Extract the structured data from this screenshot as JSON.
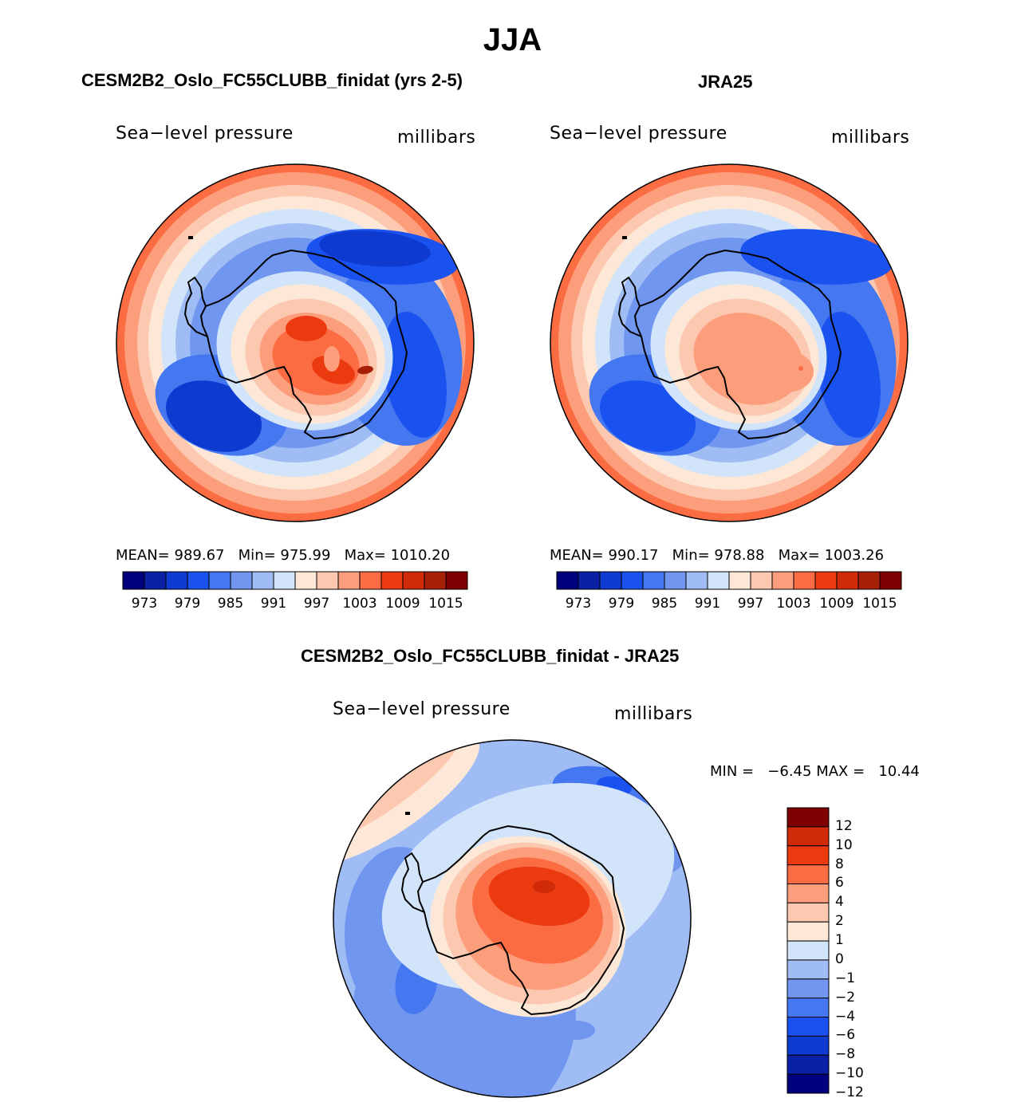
{
  "figure": {
    "title": "JJA"
  },
  "colors": {
    "abs_scale": [
      "#00007f",
      "#0a21a6",
      "#0f3acf",
      "#1a52f0",
      "#4477f0",
      "#7096f0",
      "#a0bcf4",
      "#d2e4fa",
      "#fde8d8",
      "#fcc8b0",
      "#fc9e7c",
      "#fb6c42",
      "#ec3a10",
      "#d02a08",
      "#a61f06",
      "#7f0000"
    ],
    "diff_scale": [
      "#00007f",
      "#0a21a6",
      "#0f3acf",
      "#1a52f0",
      "#4477f0",
      "#7096f0",
      "#a0bcf4",
      "#d2e4fa",
      "#fde8d8",
      "#fcc8b0",
      "#fc9e7c",
      "#fb6c42",
      "#ec3a10",
      "#d02a08",
      "#7f0000"
    ],
    "coast": "#000000"
  },
  "panels": [
    {
      "title": "CESM2B2_Oslo_FC55CLUBB_finidat (yrs 2-5)",
      "variable": "Sea−level pressure",
      "units": "millibars",
      "stats": {
        "mean_label": "MEAN=",
        "mean": "989.67",
        "min_label": "Min=",
        "min": "975.99",
        "max_label": "Max=",
        "max": "1010.20"
      }
    },
    {
      "title": "JRA25",
      "variable": "Sea−level pressure",
      "units": "millibars",
      "stats": {
        "mean_label": "MEAN=",
        "mean": "990.17",
        "min_label": "Min=",
        "min": "978.88",
        "max_label": "Max=",
        "max": "1003.26"
      }
    },
    {
      "title": "CESM2B2_Oslo_FC55CLUBB_finidat - JRA25",
      "variable": "Sea−level pressure",
      "units": "millibars",
      "stats": {
        "min_label": "MIN =",
        "min": "−6.45",
        "max_label": "MAX =",
        "max": "10.44"
      }
    }
  ],
  "chart_data": [
    {
      "type": "heatmap",
      "title": "CESM2B2_Oslo_FC55CLUBB_finidat (yrs 2-5)",
      "projection": "south-polar-stereographic",
      "variable": "Sea-level pressure",
      "units": "millibars",
      "mean": 989.67,
      "min": 975.99,
      "max": 1010.2,
      "colorbar_ticks": [
        "973",
        "979",
        "985",
        "991",
        "997",
        "1003",
        "1009",
        "1015"
      ],
      "colorbar_orientation": "horizontal",
      "features": [
        {
          "name": "antarctic-high",
          "value": 1006
        },
        {
          "name": "circumpolar-trough",
          "value": 979
        },
        {
          "name": "subtropical-ring",
          "value": 1003
        }
      ]
    },
    {
      "type": "heatmap",
      "title": "JRA25",
      "projection": "south-polar-stereographic",
      "variable": "Sea-level pressure",
      "units": "millibars",
      "mean": 990.17,
      "min": 978.88,
      "max": 1003.26,
      "colorbar_ticks": [
        "973",
        "979",
        "985",
        "991",
        "997",
        "1003",
        "1009",
        "1015"
      ],
      "colorbar_orientation": "horizontal",
      "features": [
        {
          "name": "antarctic-high",
          "value": 1000
        },
        {
          "name": "circumpolar-trough",
          "value": 980
        },
        {
          "name": "subtropical-ring",
          "value": 1003
        }
      ]
    },
    {
      "type": "heatmap",
      "title": "CESM2B2_Oslo_FC55CLUBB_finidat - JRA25",
      "projection": "south-polar-stereographic",
      "variable": "Sea-level pressure",
      "units": "millibars",
      "min": -6.45,
      "max": 10.44,
      "colorbar_ticks": [
        "12",
        "10",
        "8",
        "6",
        "4",
        "2",
        "1",
        "0",
        "−1",
        "−2",
        "−4",
        "−6",
        "−8",
        "−10",
        "−12"
      ],
      "colorbar_orientation": "vertical",
      "features": [
        {
          "name": "antarctic-positive-anomaly",
          "value": 8
        },
        {
          "name": "southern-ocean-negative-anomaly",
          "value": -3
        }
      ]
    }
  ]
}
